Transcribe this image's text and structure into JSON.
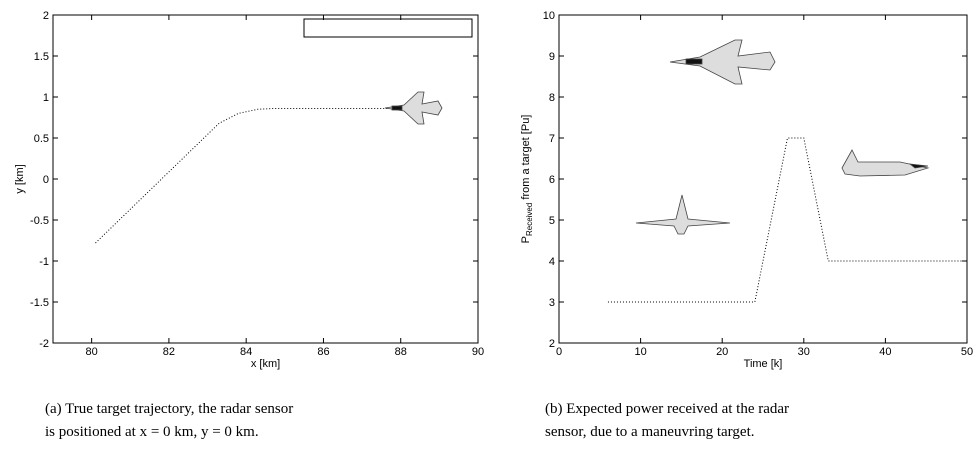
{
  "chart_data": [
    {
      "type": "line",
      "xlabel": "x [km]",
      "ylabel": "y [km]",
      "xlim": [
        79,
        90
      ],
      "xticks": [
        80,
        82,
        84,
        86,
        88,
        90
      ],
      "ylim": [
        -2,
        2
      ],
      "yticks": [
        -2,
        -1.5,
        -1,
        -0.5,
        0,
        0.5,
        1,
        1.5,
        2
      ],
      "legend": "upper right",
      "series": [
        {
          "name": "True target trajectory",
          "color": "#000000",
          "x": [
            80.1,
            83.3,
            83.8,
            84.3,
            84.7,
            87.7
          ],
          "values": [
            -0.78,
            0.68,
            0.8,
            0.85,
            0.86,
            0.86
          ]
        }
      ],
      "caption": [
        "(a) True target trajectory, the radar sensor",
        "is positioned at x = 0 km, y = 0 km."
      ]
    },
    {
      "type": "line",
      "xlabel": "Time [k]",
      "ylabel": [
        "P",
        "Received",
        " from a target [Pu]"
      ],
      "xlim": [
        0,
        50
      ],
      "xticks": [
        0,
        10,
        20,
        30,
        40,
        50
      ],
      "ylim": [
        2,
        10
      ],
      "yticks": [
        2,
        3,
        4,
        5,
        6,
        7,
        8,
        9,
        10
      ],
      "series": [
        {
          "name": null,
          "color": "#000000",
          "x": [
            6,
            24,
            28,
            30,
            33,
            50
          ],
          "values": [
            3,
            3,
            7,
            7,
            4,
            4
          ]
        }
      ],
      "caption": [
        "(b) Expected power received at the radar",
        "sensor, due to a maneuvring target."
      ]
    }
  ]
}
